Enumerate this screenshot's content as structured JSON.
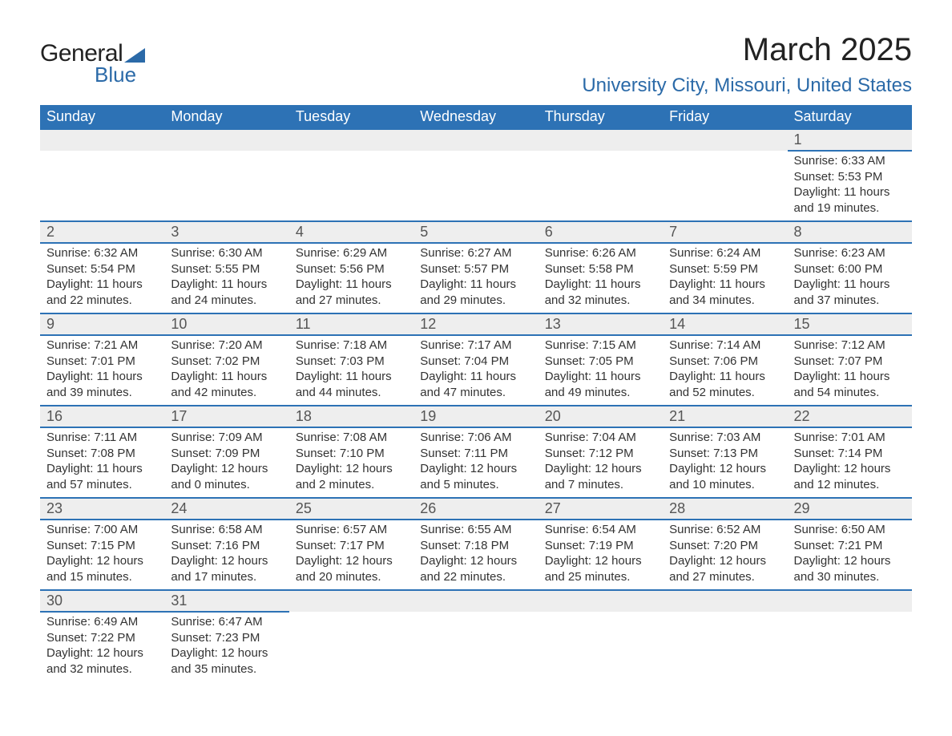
{
  "brand": {
    "text1": "General",
    "text2": "Blue"
  },
  "title": "March 2025",
  "location": "University City, Missouri, United States",
  "colors": {
    "header_bg": "#2d72b5",
    "header_text": "#ffffff",
    "daynum_bg": "#eeeeee",
    "border": "#2d72b5",
    "brand_blue": "#2b6aa8",
    "body_text": "#333333"
  },
  "typography": {
    "title_fontsize": 40,
    "location_fontsize": 24,
    "dayhead_fontsize": 18,
    "daynum_fontsize": 18,
    "data_fontsize": 15
  },
  "day_headers": [
    "Sunday",
    "Monday",
    "Tuesday",
    "Wednesday",
    "Thursday",
    "Friday",
    "Saturday"
  ],
  "weeks": [
    [
      null,
      null,
      null,
      null,
      null,
      null,
      {
        "n": "1",
        "sr": "6:33 AM",
        "ss": "5:53 PM",
        "dh": "11",
        "dm": "19"
      }
    ],
    [
      {
        "n": "2",
        "sr": "6:32 AM",
        "ss": "5:54 PM",
        "dh": "11",
        "dm": "22"
      },
      {
        "n": "3",
        "sr": "6:30 AM",
        "ss": "5:55 PM",
        "dh": "11",
        "dm": "24"
      },
      {
        "n": "4",
        "sr": "6:29 AM",
        "ss": "5:56 PM",
        "dh": "11",
        "dm": "27"
      },
      {
        "n": "5",
        "sr": "6:27 AM",
        "ss": "5:57 PM",
        "dh": "11",
        "dm": "29"
      },
      {
        "n": "6",
        "sr": "6:26 AM",
        "ss": "5:58 PM",
        "dh": "11",
        "dm": "32"
      },
      {
        "n": "7",
        "sr": "6:24 AM",
        "ss": "5:59 PM",
        "dh": "11",
        "dm": "34"
      },
      {
        "n": "8",
        "sr": "6:23 AM",
        "ss": "6:00 PM",
        "dh": "11",
        "dm": "37"
      }
    ],
    [
      {
        "n": "9",
        "sr": "7:21 AM",
        "ss": "7:01 PM",
        "dh": "11",
        "dm": "39"
      },
      {
        "n": "10",
        "sr": "7:20 AM",
        "ss": "7:02 PM",
        "dh": "11",
        "dm": "42"
      },
      {
        "n": "11",
        "sr": "7:18 AM",
        "ss": "7:03 PM",
        "dh": "11",
        "dm": "44"
      },
      {
        "n": "12",
        "sr": "7:17 AM",
        "ss": "7:04 PM",
        "dh": "11",
        "dm": "47"
      },
      {
        "n": "13",
        "sr": "7:15 AM",
        "ss": "7:05 PM",
        "dh": "11",
        "dm": "49"
      },
      {
        "n": "14",
        "sr": "7:14 AM",
        "ss": "7:06 PM",
        "dh": "11",
        "dm": "52"
      },
      {
        "n": "15",
        "sr": "7:12 AM",
        "ss": "7:07 PM",
        "dh": "11",
        "dm": "54"
      }
    ],
    [
      {
        "n": "16",
        "sr": "7:11 AM",
        "ss": "7:08 PM",
        "dh": "11",
        "dm": "57"
      },
      {
        "n": "17",
        "sr": "7:09 AM",
        "ss": "7:09 PM",
        "dh": "12",
        "dm": "0"
      },
      {
        "n": "18",
        "sr": "7:08 AM",
        "ss": "7:10 PM",
        "dh": "12",
        "dm": "2"
      },
      {
        "n": "19",
        "sr": "7:06 AM",
        "ss": "7:11 PM",
        "dh": "12",
        "dm": "5"
      },
      {
        "n": "20",
        "sr": "7:04 AM",
        "ss": "7:12 PM",
        "dh": "12",
        "dm": "7"
      },
      {
        "n": "21",
        "sr": "7:03 AM",
        "ss": "7:13 PM",
        "dh": "12",
        "dm": "10"
      },
      {
        "n": "22",
        "sr": "7:01 AM",
        "ss": "7:14 PM",
        "dh": "12",
        "dm": "12"
      }
    ],
    [
      {
        "n": "23",
        "sr": "7:00 AM",
        "ss": "7:15 PM",
        "dh": "12",
        "dm": "15"
      },
      {
        "n": "24",
        "sr": "6:58 AM",
        "ss": "7:16 PM",
        "dh": "12",
        "dm": "17"
      },
      {
        "n": "25",
        "sr": "6:57 AM",
        "ss": "7:17 PM",
        "dh": "12",
        "dm": "20"
      },
      {
        "n": "26",
        "sr": "6:55 AM",
        "ss": "7:18 PM",
        "dh": "12",
        "dm": "22"
      },
      {
        "n": "27",
        "sr": "6:54 AM",
        "ss": "7:19 PM",
        "dh": "12",
        "dm": "25"
      },
      {
        "n": "28",
        "sr": "6:52 AM",
        "ss": "7:20 PM",
        "dh": "12",
        "dm": "27"
      },
      {
        "n": "29",
        "sr": "6:50 AM",
        "ss": "7:21 PM",
        "dh": "12",
        "dm": "30"
      }
    ],
    [
      {
        "n": "30",
        "sr": "6:49 AM",
        "ss": "7:22 PM",
        "dh": "12",
        "dm": "32"
      },
      {
        "n": "31",
        "sr": "6:47 AM",
        "ss": "7:23 PM",
        "dh": "12",
        "dm": "35"
      },
      null,
      null,
      null,
      null,
      null
    ]
  ],
  "labels": {
    "sunrise": "Sunrise: ",
    "sunset": "Sunset: ",
    "daylight1": "Daylight: ",
    "daylight2": " hours and ",
    "daylight3": " minutes."
  }
}
